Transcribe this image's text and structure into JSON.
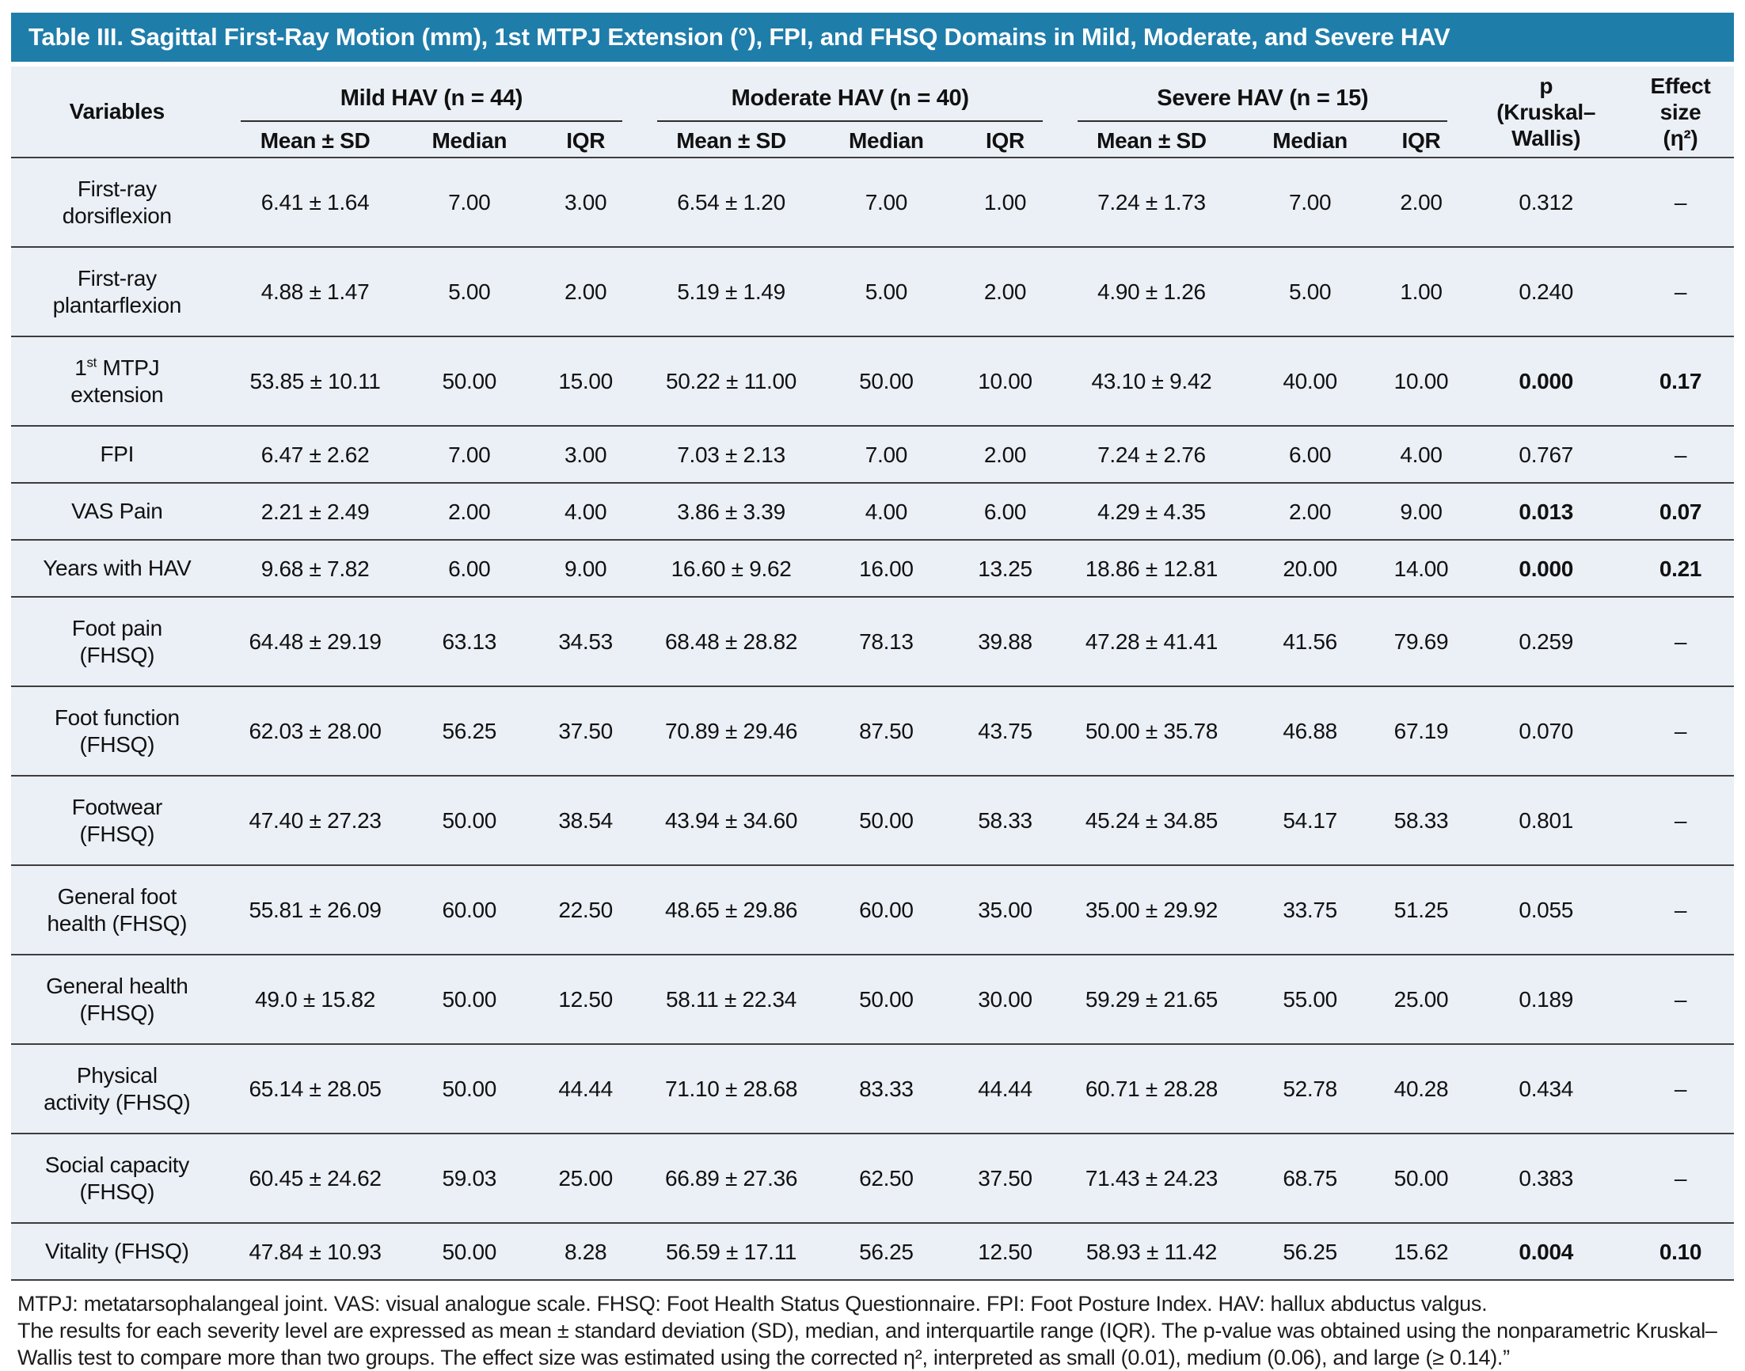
{
  "title": "Table III. Sagittal First-Ray Motion (mm), 1st MTPJ Extension (°), FPI, and FHSQ Domains in Mild, Moderate, and Severe HAV",
  "colors": {
    "title_bar_bg": "#1f7daa",
    "title_text": "#ffffff",
    "table_bg": "#ebeff6",
    "rule_line": "#3d3d3d",
    "body_text": "#111111"
  },
  "header": {
    "variables_label": "Variables",
    "groups": [
      {
        "label": "Mild HAV (n = 44)"
      },
      {
        "label": "Moderate HAV (n = 40)"
      },
      {
        "label": "Severe HAV (n = 15)"
      }
    ],
    "sub_headers": [
      "Mean ± SD",
      "Median",
      "IQR"
    ],
    "p_label": "p\n(Kruskal–\nWallis)",
    "effect_label": "Effect\nsize\n(η²)"
  },
  "rows": [
    {
      "label": "First-ray\ndorsiflexion",
      "mild": {
        "mean": "6.41 ± 1.64",
        "median": "7.00",
        "iqr": "3.00"
      },
      "moderate": {
        "mean": "6.54 ± 1.20",
        "median": "7.00",
        "iqr": "1.00"
      },
      "severe": {
        "mean": "7.24 ± 1.73",
        "median": "7.00",
        "iqr": "2.00"
      },
      "p": "0.312",
      "effect": "–",
      "significant": false
    },
    {
      "label": "First-ray\nplantarflexion",
      "mild": {
        "mean": "4.88 ± 1.47",
        "median": "5.00",
        "iqr": "2.00"
      },
      "moderate": {
        "mean": "5.19 ± 1.49",
        "median": "5.00",
        "iqr": "2.00"
      },
      "severe": {
        "mean": "4.90 ± 1.26",
        "median": "5.00",
        "iqr": "1.00"
      },
      "p": "0.240",
      "effect": "–",
      "significant": false
    },
    {
      "label": "1^{st} MTPJ\nextension",
      "mild": {
        "mean": "53.85 ± 10.11",
        "median": "50.00",
        "iqr": "15.00"
      },
      "moderate": {
        "mean": "50.22 ± 11.00",
        "median": "50.00",
        "iqr": "10.00"
      },
      "severe": {
        "mean": "43.10 ± 9.42",
        "median": "40.00",
        "iqr": "10.00"
      },
      "p": "0.000",
      "effect": "0.17",
      "significant": true
    },
    {
      "label": "FPI",
      "mild": {
        "mean": "6.47 ± 2.62",
        "median": "7.00",
        "iqr": "3.00"
      },
      "moderate": {
        "mean": "7.03 ± 2.13",
        "median": "7.00",
        "iqr": "2.00"
      },
      "severe": {
        "mean": "7.24 ± 2.76",
        "median": "6.00",
        "iqr": "4.00"
      },
      "p": "0.767",
      "effect": "–",
      "significant": false
    },
    {
      "label": "VAS Pain",
      "mild": {
        "mean": "2.21 ± 2.49",
        "median": "2.00",
        "iqr": "4.00"
      },
      "moderate": {
        "mean": "3.86 ± 3.39",
        "median": "4.00",
        "iqr": "6.00"
      },
      "severe": {
        "mean": "4.29 ± 4.35",
        "median": "2.00",
        "iqr": "9.00"
      },
      "p": "0.013",
      "effect": "0.07",
      "significant": true
    },
    {
      "label": "Years with HAV",
      "mild": {
        "mean": "9.68 ± 7.82",
        "median": "6.00",
        "iqr": "9.00"
      },
      "moderate": {
        "mean": "16.60 ± 9.62",
        "median": "16.00",
        "iqr": "13.25"
      },
      "severe": {
        "mean": "18.86 ± 12.81",
        "median": "20.00",
        "iqr": "14.00"
      },
      "p": "0.000",
      "effect": "0.21",
      "significant": true
    },
    {
      "label": "Foot pain\n(FHSQ)",
      "mild": {
        "mean": "64.48 ± 29.19",
        "median": "63.13",
        "iqr": "34.53"
      },
      "moderate": {
        "mean": "68.48 ± 28.82",
        "median": "78.13",
        "iqr": "39.88"
      },
      "severe": {
        "mean": "47.28 ± 41.41",
        "median": "41.56",
        "iqr": "79.69"
      },
      "p": "0.259",
      "effect": "–",
      "significant": false
    },
    {
      "label": "Foot function\n(FHSQ)",
      "mild": {
        "mean": "62.03 ± 28.00",
        "median": "56.25",
        "iqr": "37.50"
      },
      "moderate": {
        "mean": "70.89 ± 29.46",
        "median": "87.50",
        "iqr": "43.75"
      },
      "severe": {
        "mean": "50.00 ± 35.78",
        "median": "46.88",
        "iqr": "67.19"
      },
      "p": "0.070",
      "effect": "–",
      "significant": false
    },
    {
      "label": "Footwear\n(FHSQ)",
      "mild": {
        "mean": "47.40 ± 27.23",
        "median": "50.00",
        "iqr": "38.54"
      },
      "moderate": {
        "mean": "43.94 ± 34.60",
        "median": "50.00",
        "iqr": "58.33"
      },
      "severe": {
        "mean": "45.24 ± 34.85",
        "median": "54.17",
        "iqr": "58.33"
      },
      "p": "0.801",
      "effect": "–",
      "significant": false
    },
    {
      "label": "General foot\nhealth (FHSQ)",
      "mild": {
        "mean": "55.81 ± 26.09",
        "median": "60.00",
        "iqr": "22.50"
      },
      "moderate": {
        "mean": "48.65 ± 29.86",
        "median": "60.00",
        "iqr": "35.00"
      },
      "severe": {
        "mean": "35.00 ± 29.92",
        "median": "33.75",
        "iqr": "51.25"
      },
      "p": "0.055",
      "effect": "–",
      "significant": false
    },
    {
      "label": "General health\n(FHSQ)",
      "mild": {
        "mean": "49.0 ± 15.82",
        "median": "50.00",
        "iqr": "12.50"
      },
      "moderate": {
        "mean": "58.11 ± 22.34",
        "median": "50.00",
        "iqr": "30.00"
      },
      "severe": {
        "mean": "59.29 ± 21.65",
        "median": "55.00",
        "iqr": "25.00"
      },
      "p": "0.189",
      "effect": "–",
      "significant": false
    },
    {
      "label": "Physical\nactivity (FHSQ)",
      "mild": {
        "mean": "65.14 ± 28.05",
        "median": "50.00",
        "iqr": "44.44"
      },
      "moderate": {
        "mean": "71.10 ± 28.68",
        "median": "83.33",
        "iqr": "44.44"
      },
      "severe": {
        "mean": "60.71 ± 28.28",
        "median": "52.78",
        "iqr": "40.28"
      },
      "p": "0.434",
      "effect": "–",
      "significant": false
    },
    {
      "label": "Social capacity\n(FHSQ)",
      "mild": {
        "mean": "60.45 ± 24.62",
        "median": "59.03",
        "iqr": "25.00"
      },
      "moderate": {
        "mean": "66.89 ± 27.36",
        "median": "62.50",
        "iqr": "37.50"
      },
      "severe": {
        "mean": "71.43 ± 24.23",
        "median": "68.75",
        "iqr": "50.00"
      },
      "p": "0.383",
      "effect": "–",
      "significant": false
    },
    {
      "label": "Vitality (FHSQ)",
      "mild": {
        "mean": "47.84 ± 10.93",
        "median": "50.00",
        "iqr": "8.28"
      },
      "moderate": {
        "mean": "56.59 ± 17.11",
        "median": "56.25",
        "iqr": "12.50"
      },
      "severe": {
        "mean": "58.93 ± 11.42",
        "median": "56.25",
        "iqr": "15.62"
      },
      "p": "0.004",
      "effect": "0.10",
      "significant": true
    }
  ],
  "footnotes": [
    "MTPJ: metatarsophalangeal joint. VAS: visual analogue scale. FHSQ: Foot Health Status Questionnaire. FPI: Foot Posture Index. HAV: hallux abductus valgus.",
    "The results for each severity level are expressed as mean ± standard deviation (SD), median, and interquartile range (IQR). The p-value was obtained using the nonparametric Kruskal–Wallis test to compare more than two groups. The effect size was estimated using the corrected η², interpreted as small (0.01), medium (0.06), and large (≥ 0.14).”"
  ]
}
